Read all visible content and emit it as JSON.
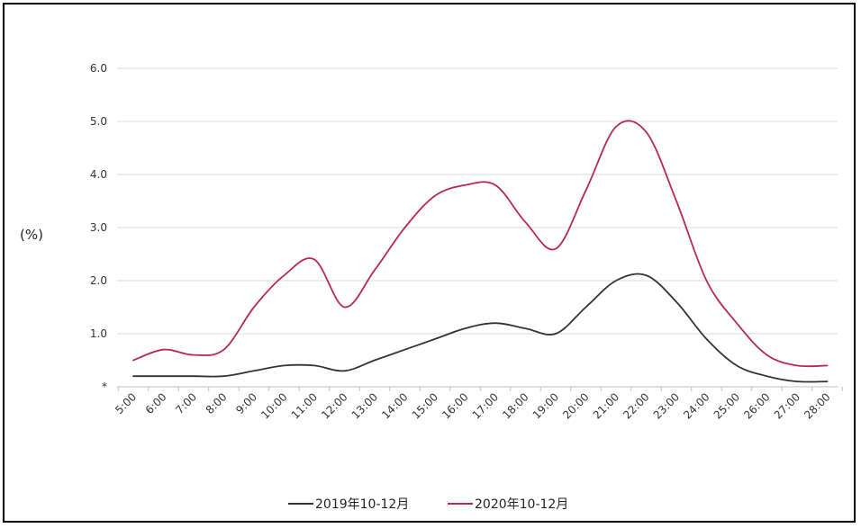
{
  "chart_data": {
    "type": "line",
    "ylabel": "(%)",
    "ylim": [
      0,
      6
    ],
    "y_ticks": [
      {
        "value": 0,
        "label": "*"
      },
      {
        "value": 1,
        "label": "1.0"
      },
      {
        "value": 2,
        "label": "2.0"
      },
      {
        "value": 3,
        "label": "3.0"
      },
      {
        "value": 4,
        "label": "4.0"
      },
      {
        "value": 5,
        "label": "5.0"
      },
      {
        "value": 6,
        "label": "6.0"
      }
    ],
    "grid": "horizontal",
    "legend": "bottom",
    "categories": [
      "5:00",
      "6:00",
      "7:00",
      "8:00",
      "9:00",
      "10:00",
      "11:00",
      "12:00",
      "13:00",
      "14:00",
      "15:00",
      "16:00",
      "17:00",
      "18:00",
      "19:00",
      "20:00",
      "21:00",
      "22:00",
      "23:00",
      "24:00",
      "25:00",
      "26:00",
      "27:00",
      "28:00"
    ],
    "series": [
      {
        "name": "2019年10-12月",
        "color": "#333333",
        "values": [
          0.2,
          0.2,
          0.2,
          0.2,
          0.3,
          0.4,
          0.4,
          0.3,
          0.5,
          0.7,
          0.9,
          1.1,
          1.2,
          1.1,
          1.0,
          1.5,
          2.0,
          2.1,
          1.6,
          0.9,
          0.4,
          0.2,
          0.1,
          0.1
        ]
      },
      {
        "name": "2020年10-12月",
        "color": "#b5285a",
        "values": [
          0.5,
          0.7,
          0.6,
          0.7,
          1.5,
          2.1,
          2.4,
          1.5,
          2.2,
          3.0,
          3.6,
          3.8,
          3.8,
          3.1,
          2.6,
          3.7,
          4.9,
          4.8,
          3.5,
          2.0,
          1.2,
          0.6,
          0.4,
          0.4
        ]
      }
    ]
  }
}
